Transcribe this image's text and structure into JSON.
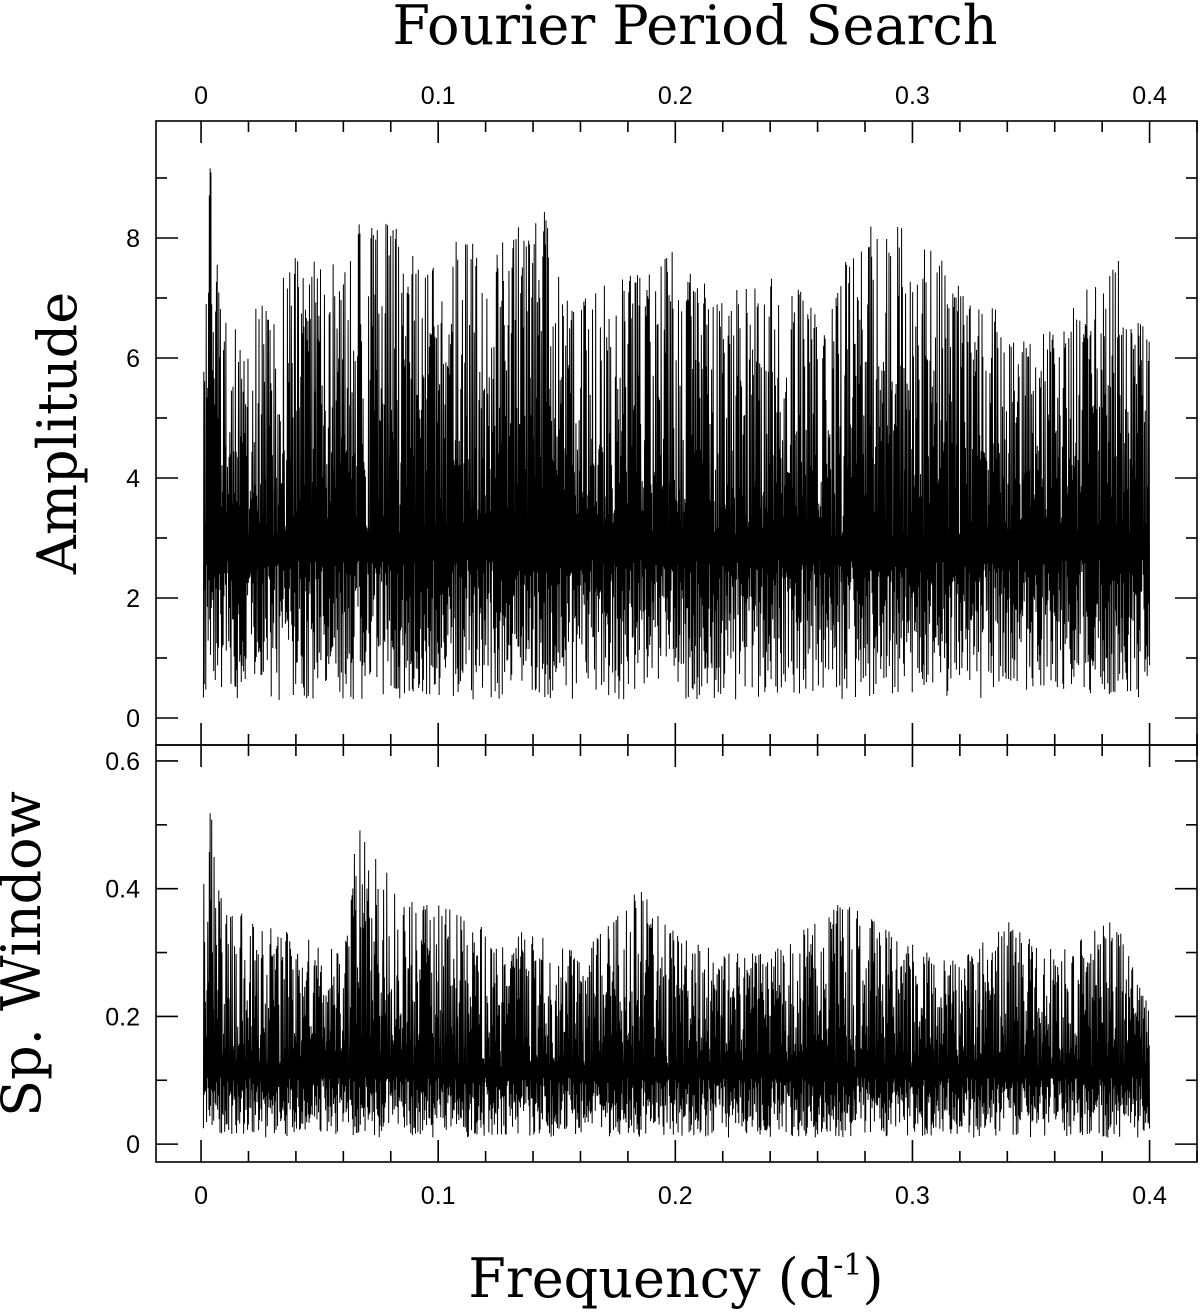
{
  "chart_data": {
    "type": "line",
    "title": "Fourier Period Search",
    "xlabel": "Frequency (d",
    "xlabel_sup": "-1",
    "xlabel_suffix": ")",
    "x_top_ticks": [
      "0",
      "0.1",
      "0.2",
      "0.3",
      "0.4"
    ],
    "x_bottom_ticks": [
      "0",
      "0.1",
      "0.2",
      "0.3",
      "0.4"
    ],
    "xlim": [
      -0.019,
      0.42
    ],
    "colors": {
      "line": "#000000",
      "frame": "#000000",
      "background": "#ffffff"
    },
    "panels": [
      {
        "name": "amplitude",
        "ylabel": "Amplitude",
        "ylim": [
          -0.45,
          9.95
        ],
        "yticks": [
          "0",
          "2",
          "4",
          "6",
          "8"
        ],
        "ytick_values": [
          0,
          2,
          4,
          6,
          8
        ],
        "x_range": [
          0.001,
          0.4
        ],
        "envelope_max": [
          [
            0.001,
            8.0
          ],
          [
            0.004,
            9.45
          ],
          [
            0.01,
            6.8
          ],
          [
            0.02,
            7.2
          ],
          [
            0.04,
            7.7
          ],
          [
            0.06,
            7.6
          ],
          [
            0.066,
            8.3
          ],
          [
            0.08,
            8.45
          ],
          [
            0.1,
            7.4
          ],
          [
            0.11,
            8.3
          ],
          [
            0.12,
            7.6
          ],
          [
            0.13,
            8.1
          ],
          [
            0.145,
            8.5
          ],
          [
            0.16,
            7.2
          ],
          [
            0.18,
            7.4
          ],
          [
            0.2,
            7.8
          ],
          [
            0.22,
            7.0
          ],
          [
            0.24,
            7.7
          ],
          [
            0.26,
            6.9
          ],
          [
            0.28,
            8.1
          ],
          [
            0.285,
            8.3
          ],
          [
            0.3,
            8.4
          ],
          [
            0.32,
            7.2
          ],
          [
            0.34,
            6.8
          ],
          [
            0.36,
            6.5
          ],
          [
            0.38,
            7.6
          ],
          [
            0.385,
            7.8
          ],
          [
            0.4,
            6.8
          ]
        ],
        "typical_range": [
          0.3,
          5.5
        ]
      },
      {
        "name": "spectral-window",
        "ylabel": "Sp. Window",
        "ylim": [
          -0.028,
          0.625
        ],
        "yticks": [
          "0",
          "0.2",
          "0.4",
          "0.6"
        ],
        "ytick_values": [
          0,
          0.2,
          0.4,
          0.6
        ],
        "x_range": [
          0.001,
          0.4
        ],
        "envelope_max": [
          [
            0.001,
            0.55
          ],
          [
            0.003,
            0.58
          ],
          [
            0.008,
            0.4
          ],
          [
            0.02,
            0.35
          ],
          [
            0.04,
            0.33
          ],
          [
            0.06,
            0.3
          ],
          [
            0.066,
            0.5
          ],
          [
            0.08,
            0.42
          ],
          [
            0.1,
            0.38
          ],
          [
            0.12,
            0.34
          ],
          [
            0.14,
            0.33
          ],
          [
            0.16,
            0.3
          ],
          [
            0.185,
            0.4
          ],
          [
            0.2,
            0.33
          ],
          [
            0.22,
            0.3
          ],
          [
            0.24,
            0.3
          ],
          [
            0.27,
            0.38
          ],
          [
            0.3,
            0.32
          ],
          [
            0.32,
            0.29
          ],
          [
            0.345,
            0.36
          ],
          [
            0.36,
            0.3
          ],
          [
            0.385,
            0.36
          ],
          [
            0.4,
            0.22
          ]
        ],
        "typical_range": [
          0.01,
          0.22
        ]
      }
    ],
    "grid": false,
    "legend": "none"
  }
}
